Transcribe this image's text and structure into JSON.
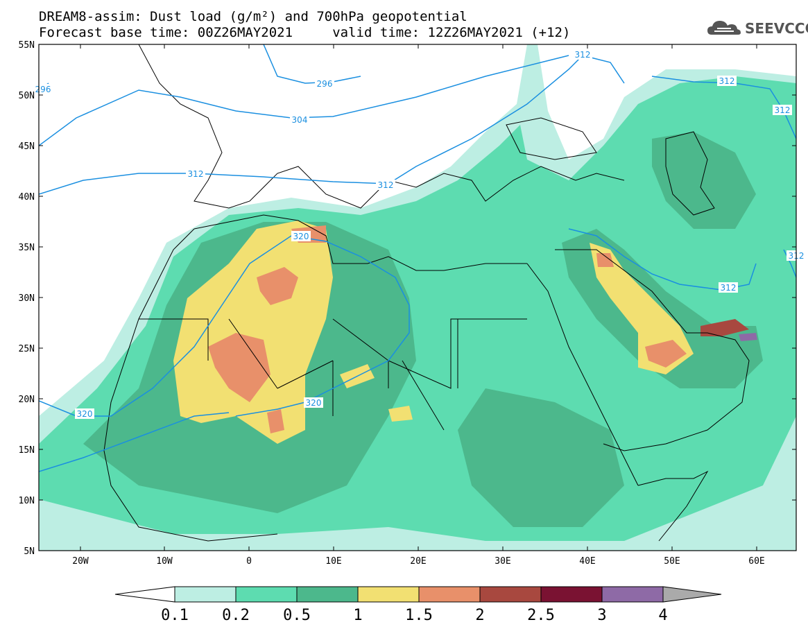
{
  "title": {
    "line1": "DREAM8-assim: Dust load (g/m²) and 700hPa geopotential",
    "line2": "Forecast base time: 00Z26MAY2021     valid time: 12Z26MAY2021 (+12)"
  },
  "logo": {
    "text": "SEEVCCC",
    "icon": "cloud-logo-icon"
  },
  "axes": {
    "lat_labels": [
      "55N",
      "50N",
      "45N",
      "40N",
      "35N",
      "30N",
      "25N",
      "20N",
      "15N",
      "10N",
      "5N"
    ],
    "lon_labels": [
      "20W",
      "10W",
      "0",
      "10E",
      "20E",
      "30E",
      "40E",
      "50E",
      "60E"
    ]
  },
  "contours": {
    "color": "#1a8fe0",
    "labels": [
      "296",
      "296",
      "304",
      "312",
      "312",
      "312",
      "312",
      "312",
      "312",
      "320",
      "320",
      "320",
      "312"
    ]
  },
  "colorbar": {
    "ticks": [
      "0.1",
      "0.2",
      "0.5",
      "1",
      "1.5",
      "2",
      "2.5",
      "3",
      "4"
    ],
    "colors": [
      "#ffffff",
      "#bdeee3",
      "#5ddcb0",
      "#4cb88c",
      "#f2e072",
      "#e8906a",
      "#a8483f",
      "#7a1232",
      "#8e6aa6",
      "#aaaaaa"
    ]
  }
}
